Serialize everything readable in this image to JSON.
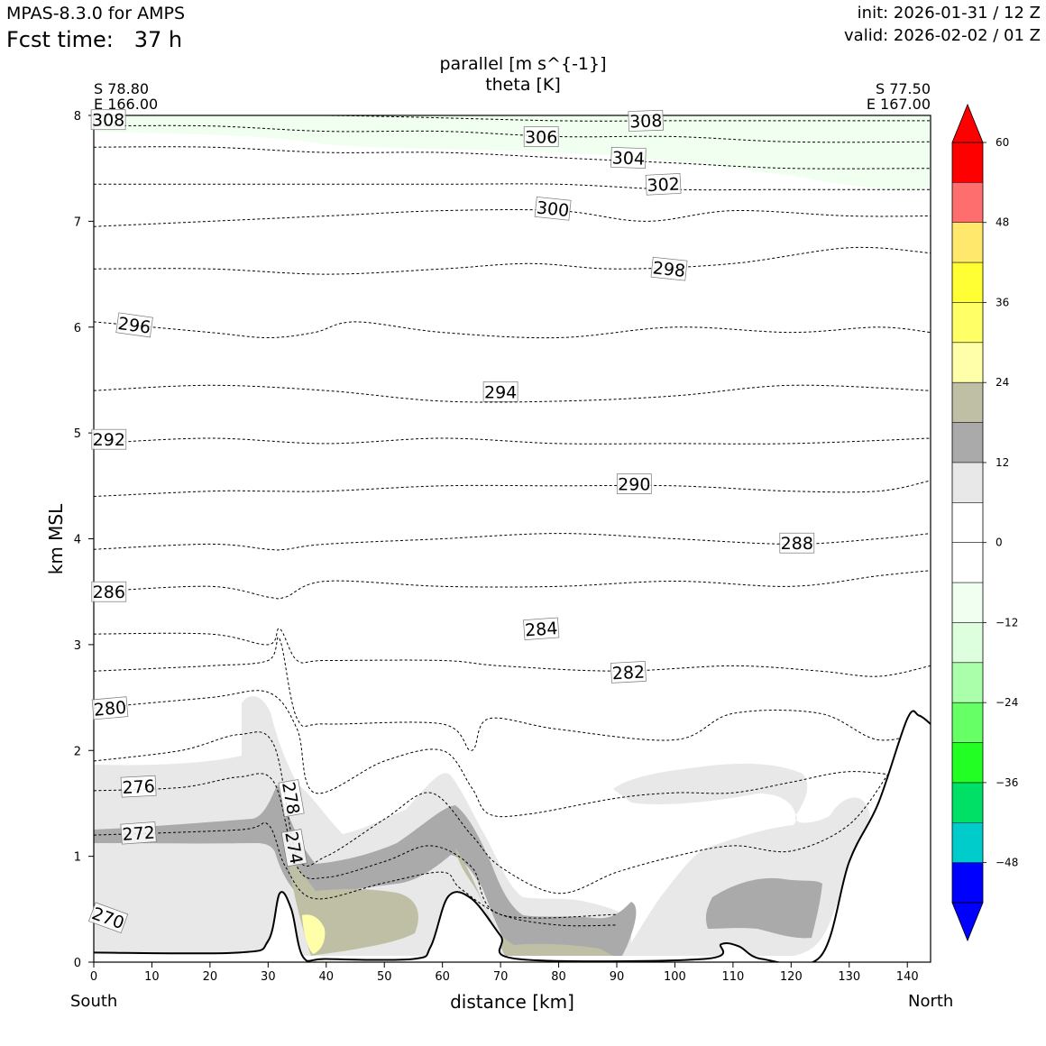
{
  "header": {
    "model": "MPAS-8.3.0 for AMPS",
    "fcst_label": "Fcst time:",
    "fcst_value": "37 h",
    "init": "init: 2026-01-31 / 12 Z",
    "valid": "valid: 2026-02-02 / 01 Z"
  },
  "locations": {
    "left_lat": "S 78.80",
    "left_lon": "E 166.00",
    "right_lat": "S 77.50",
    "right_lon": "E 167.00"
  },
  "ends": {
    "left": "South",
    "right": "North"
  },
  "chart_data": {
    "type": "contour-cross-section",
    "title": "parallel [m s^{-1}]",
    "subtitle": "theta [K]",
    "xlabel": "distance [km]",
    "ylabel": "km MSL",
    "xlim": [
      0,
      144
    ],
    "ylim": [
      0,
      8
    ],
    "xticks": [
      0,
      10,
      20,
      30,
      40,
      50,
      60,
      70,
      80,
      90,
      100,
      110,
      120,
      130,
      140
    ],
    "yticks": [
      0,
      1,
      2,
      3,
      4,
      5,
      6,
      7,
      8
    ],
    "terrain": [
      [
        0,
        0.09
      ],
      [
        25,
        0.09
      ],
      [
        30,
        0.2
      ],
      [
        32,
        0.65
      ],
      [
        34,
        0.5
      ],
      [
        36,
        0.05
      ],
      [
        40,
        0.03
      ],
      [
        55,
        0.03
      ],
      [
        58,
        0.15
      ],
      [
        61,
        0.62
      ],
      [
        65,
        0.6
      ],
      [
        70,
        0.25
      ],
      [
        73,
        0.03
      ],
      [
        105,
        0.03
      ],
      [
        108,
        0.17
      ],
      [
        111,
        0.15
      ],
      [
        115,
        0.03
      ],
      [
        125,
        0.05
      ],
      [
        130,
        0.95
      ],
      [
        135,
        1.5
      ],
      [
        140,
        2.3
      ],
      [
        142,
        2.33
      ],
      [
        144,
        2.25
      ]
    ],
    "theta_contours": [
      {
        "level": 272,
        "points": [
          [
            0,
            1.2
          ],
          [
            25,
            1.25
          ],
          [
            30,
            1.3
          ],
          [
            33,
            0.9
          ],
          [
            38,
            0.6
          ],
          [
            50,
            0.75
          ],
          [
            60,
            0.85
          ],
          [
            63,
            0.7
          ],
          [
            70,
            0.45
          ],
          [
            80,
            0.35
          ],
          [
            90,
            0.35
          ]
        ]
      },
      {
        "level": 276,
        "points": [
          [
            0,
            1.62
          ],
          [
            15,
            1.65
          ],
          [
            25,
            1.75
          ],
          [
            31,
            1.7
          ],
          [
            35,
            0.9
          ],
          [
            40,
            0.8
          ],
          [
            50,
            0.95
          ],
          [
            58,
            1.1
          ],
          [
            65,
            0.9
          ],
          [
            70,
            0.45
          ],
          [
            90,
            0.45
          ]
        ]
      },
      {
        "level": 278,
        "points": [
          [
            0,
            1.9
          ],
          [
            15,
            2.0
          ],
          [
            25,
            2.15
          ],
          [
            31,
            2.05
          ],
          [
            35,
            1.0
          ],
          [
            40,
            1.0
          ],
          [
            50,
            1.35
          ],
          [
            58,
            1.6
          ],
          [
            65,
            1.2
          ],
          [
            70,
            0.9
          ],
          [
            80,
            0.65
          ],
          [
            90,
            0.85
          ],
          [
            100,
            1.0
          ],
          [
            110,
            1.1
          ],
          [
            120,
            1.05
          ],
          [
            130,
            1.3
          ],
          [
            137,
            1.8
          ]
        ]
      },
      {
        "level": 280,
        "points": [
          [
            0,
            2.4
          ],
          [
            20,
            2.5
          ],
          [
            30,
            2.55
          ],
          [
            35,
            2.2
          ],
          [
            38,
            1.6
          ],
          [
            50,
            1.9
          ],
          [
            60,
            2.0
          ],
          [
            65,
            1.65
          ],
          [
            68,
            1.4
          ],
          [
            75,
            1.4
          ],
          [
            90,
            1.55
          ],
          [
            100,
            1.6
          ],
          [
            110,
            1.6
          ],
          [
            120,
            1.7
          ],
          [
            130,
            1.8
          ],
          [
            140,
            1.75
          ]
        ]
      },
      {
        "level": 282,
        "points": [
          [
            0,
            2.75
          ],
          [
            20,
            2.8
          ],
          [
            30,
            2.85
          ],
          [
            32,
            3.05
          ],
          [
            35,
            2.3
          ],
          [
            40,
            2.25
          ],
          [
            60,
            2.25
          ],
          [
            65,
            2.0
          ],
          [
            68,
            2.3
          ],
          [
            80,
            2.2
          ],
          [
            100,
            2.1
          ],
          [
            110,
            2.35
          ],
          [
            125,
            2.35
          ],
          [
            135,
            2.1
          ],
          [
            144,
            2.2
          ]
        ]
      },
      {
        "level": 284,
        "points": [
          [
            0,
            3.1
          ],
          [
            20,
            3.1
          ],
          [
            30,
            3.0
          ],
          [
            32,
            3.15
          ],
          [
            35,
            2.85
          ],
          [
            40,
            2.85
          ],
          [
            60,
            2.85
          ],
          [
            70,
            2.8
          ],
          [
            90,
            2.75
          ],
          [
            110,
            2.8
          ],
          [
            125,
            2.75
          ],
          [
            135,
            2.7
          ],
          [
            144,
            2.8
          ]
        ]
      },
      {
        "level": 286,
        "points": [
          [
            0,
            3.5
          ],
          [
            20,
            3.55
          ],
          [
            30,
            3.45
          ],
          [
            33,
            3.45
          ],
          [
            40,
            3.6
          ],
          [
            60,
            3.55
          ],
          [
            80,
            3.55
          ],
          [
            100,
            3.6
          ],
          [
            120,
            3.55
          ],
          [
            135,
            3.65
          ],
          [
            144,
            3.7
          ]
        ]
      },
      {
        "level": 288,
        "points": [
          [
            0,
            3.9
          ],
          [
            20,
            3.95
          ],
          [
            30,
            3.9
          ],
          [
            33,
            3.9
          ],
          [
            40,
            3.95
          ],
          [
            60,
            4.0
          ],
          [
            80,
            4.05
          ],
          [
            100,
            4.0
          ],
          [
            120,
            3.95
          ],
          [
            135,
            4.0
          ],
          [
            144,
            4.05
          ]
        ]
      },
      {
        "level": 290,
        "points": [
          [
            0,
            4.4
          ],
          [
            20,
            4.45
          ],
          [
            30,
            4.45
          ],
          [
            40,
            4.45
          ],
          [
            60,
            4.5
          ],
          [
            80,
            4.5
          ],
          [
            100,
            4.5
          ],
          [
            120,
            4.45
          ],
          [
            135,
            4.45
          ],
          [
            144,
            4.55
          ]
        ]
      },
      {
        "level": 292,
        "points": [
          [
            0,
            4.9
          ],
          [
            20,
            4.95
          ],
          [
            40,
            4.9
          ],
          [
            60,
            4.95
          ],
          [
            80,
            4.9
          ],
          [
            100,
            4.9
          ],
          [
            120,
            4.9
          ],
          [
            144,
            4.95
          ]
        ]
      },
      {
        "level": 294,
        "points": [
          [
            0,
            5.4
          ],
          [
            20,
            5.45
          ],
          [
            40,
            5.4
          ],
          [
            60,
            5.3
          ],
          [
            80,
            5.3
          ],
          [
            100,
            5.35
          ],
          [
            120,
            5.45
          ],
          [
            144,
            5.4
          ]
        ]
      },
      {
        "level": 296,
        "points": [
          [
            0,
            6.05
          ],
          [
            20,
            5.95
          ],
          [
            30,
            5.9
          ],
          [
            38,
            5.95
          ],
          [
            45,
            6.05
          ],
          [
            60,
            5.95
          ],
          [
            80,
            5.9
          ],
          [
            100,
            6.0
          ],
          [
            120,
            5.95
          ],
          [
            135,
            6.0
          ],
          [
            144,
            5.95
          ]
        ]
      },
      {
        "level": 298,
        "points": [
          [
            0,
            6.55
          ],
          [
            20,
            6.55
          ],
          [
            40,
            6.5
          ],
          [
            60,
            6.55
          ],
          [
            75,
            6.6
          ],
          [
            90,
            6.55
          ],
          [
            110,
            6.6
          ],
          [
            130,
            6.75
          ],
          [
            144,
            6.7
          ]
        ]
      },
      {
        "level": 300,
        "points": [
          [
            0,
            6.95
          ],
          [
            20,
            7.0
          ],
          [
            40,
            7.05
          ],
          [
            60,
            7.1
          ],
          [
            80,
            7.1
          ],
          [
            95,
            7.0
          ],
          [
            110,
            7.1
          ],
          [
            130,
            7.05
          ],
          [
            144,
            7.05
          ]
        ]
      },
      {
        "level": 302,
        "points": [
          [
            0,
            7.35
          ],
          [
            20,
            7.35
          ],
          [
            40,
            7.35
          ],
          [
            60,
            7.35
          ],
          [
            80,
            7.35
          ],
          [
            100,
            7.3
          ],
          [
            120,
            7.3
          ],
          [
            144,
            7.3
          ]
        ]
      },
      {
        "level": 304,
        "points": [
          [
            0,
            7.7
          ],
          [
            20,
            7.7
          ],
          [
            40,
            7.65
          ],
          [
            60,
            7.65
          ],
          [
            80,
            7.6
          ],
          [
            100,
            7.55
          ],
          [
            120,
            7.5
          ],
          [
            144,
            7.5
          ]
        ]
      },
      {
        "level": 306,
        "points": [
          [
            0,
            7.9
          ],
          [
            20,
            7.9
          ],
          [
            40,
            7.85
          ],
          [
            60,
            7.85
          ],
          [
            80,
            7.8
          ],
          [
            100,
            7.8
          ],
          [
            120,
            7.75
          ],
          [
            144,
            7.75
          ]
        ]
      },
      {
        "level": 308,
        "points": [
          [
            0,
            8.0
          ],
          [
            40,
            8.0
          ],
          [
            80,
            7.95
          ],
          [
            100,
            7.95
          ],
          [
            144,
            7.95
          ]
        ]
      }
    ],
    "contour_labels": [
      {
        "text": "308",
        "x": 2.5,
        "y": 7.96,
        "rot": 0
      },
      {
        "text": "308",
        "x": 95,
        "y": 7.95,
        "rot": -2
      },
      {
        "text": "306",
        "x": 77,
        "y": 7.8,
        "rot": 0
      },
      {
        "text": "304",
        "x": 92,
        "y": 7.6,
        "rot": 2
      },
      {
        "text": "302",
        "x": 98,
        "y": 7.35,
        "rot": -3
      },
      {
        "text": "300",
        "x": 79,
        "y": 7.12,
        "rot": 6
      },
      {
        "text": "298",
        "x": 99,
        "y": 6.55,
        "rot": 6
      },
      {
        "text": "296",
        "x": 7,
        "y": 6.02,
        "rot": 8
      },
      {
        "text": "294",
        "x": 70,
        "y": 5.39,
        "rot": 0
      },
      {
        "text": "292",
        "x": 2.6,
        "y": 4.94,
        "rot": 0
      },
      {
        "text": "290",
        "x": 93,
        "y": 4.52,
        "rot": 0
      },
      {
        "text": "288",
        "x": 121,
        "y": 3.96,
        "rot": 0
      },
      {
        "text": "286",
        "x": 2.6,
        "y": 3.5,
        "rot": 0
      },
      {
        "text": "284",
        "x": 77,
        "y": 3.15,
        "rot": -4
      },
      {
        "text": "282",
        "x": 92,
        "y": 2.74,
        "rot": -3
      },
      {
        "text": "280",
        "x": 2.8,
        "y": 2.4,
        "rot": -5
      },
      {
        "text": "276",
        "x": 7.7,
        "y": 1.66,
        "rot": -3
      },
      {
        "text": "272",
        "x": 7.7,
        "y": 1.22,
        "rot": -4
      },
      {
        "text": "278",
        "x": 34,
        "y": 1.55,
        "rot": 80
      },
      {
        "text": "274",
        "x": 34.5,
        "y": 1.08,
        "rot": 80
      },
      {
        "text": "270",
        "x": 2.5,
        "y": 0.42,
        "rot": 20
      }
    ],
    "colorbar": {
      "ticks": [
        60,
        48,
        36,
        24,
        12,
        0,
        -12,
        -24,
        -36,
        -48
      ],
      "tick_labels": [
        "60",
        "48",
        "36",
        "24",
        "12",
        "0",
        "−12",
        "−24",
        "−36",
        "−48"
      ],
      "colors": [
        "#ff0000",
        "#ff6e6e",
        "#ffe86b",
        "#ffff33",
        "#ffff66",
        "#ffffaa",
        "#bfbfa6",
        "#aaaaaa",
        "#e8e8e8",
        "#ffffff",
        "#ffffff",
        "#f0fff0",
        "#ddffdd",
        "#aaffaa",
        "#66ff66",
        "#22ff22",
        "#00e066",
        "#00cccc",
        "#0000ff"
      ],
      "extend_top": "#ff0000",
      "extend_bottom": "#0000ff"
    },
    "fill_colors": {
      "light_gray": "#e8e8e8",
      "gray": "#aaaaaa",
      "olive": "#bfbfa6",
      "pale_yellow": "#ffffaa",
      "pale_green": "#f0fff0"
    }
  }
}
